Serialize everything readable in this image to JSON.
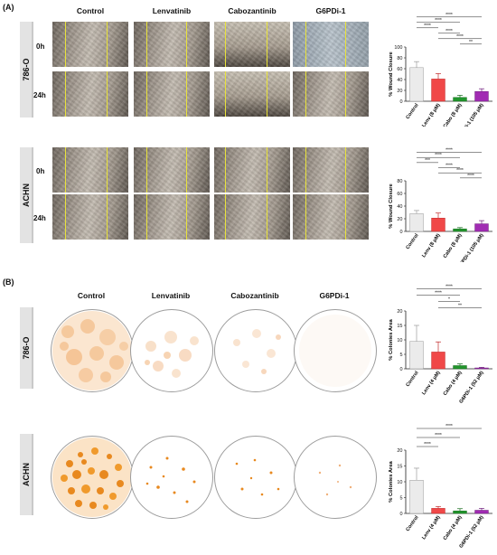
{
  "panel_a": {
    "letter": "(A)",
    "columns": [
      "Control",
      "Lenvatinib",
      "Cabozantinib",
      "G6PDi-1"
    ],
    "cell_lines": [
      "786-O",
      "ACHN"
    ],
    "timepoints": [
      "0h",
      "24h"
    ]
  },
  "panel_b": {
    "letter": "(B)",
    "columns": [
      "Control",
      "Lenvatinib",
      "Cabozantinib",
      "G6PDi-1"
    ],
    "cell_lines": [
      "786-O",
      "ACHN"
    ]
  },
  "colors": {
    "control": "#ebebeb",
    "lenv": "#f04848",
    "cabo": "#22962d",
    "g6pdi": "#a12cb3"
  },
  "chart_data": [
    {
      "type": "bar",
      "categories": [
        "Control",
        "Lenv (8 μM)",
        "Cabo (8 μM)",
        "G6PDi-1 (105 μM)"
      ],
      "values": [
        62,
        41,
        7,
        18
      ],
      "errors": [
        11,
        10,
        4,
        5
      ],
      "ylabel": "% Wound Closure",
      "ylim": [
        0,
        100
      ],
      "yticks": [
        0,
        20,
        40,
        60,
        80,
        100
      ],
      "significance": [
        {
          "from": 0,
          "to": 3,
          "label": "****"
        },
        {
          "from": 0,
          "to": 2,
          "label": "****"
        },
        {
          "from": 0,
          "to": 1,
          "label": "****"
        },
        {
          "from": 1,
          "to": 2,
          "label": "****"
        },
        {
          "from": 1,
          "to": 3,
          "label": "****"
        },
        {
          "from": 2,
          "to": 3,
          "label": "**"
        }
      ]
    },
    {
      "type": "bar",
      "categories": [
        "Control",
        "Lenv (8 μM)",
        "Cabo (8 μM)",
        "G6PDi-1 (105 μM)"
      ],
      "values": [
        28,
        21,
        4,
        12
      ],
      "errors": [
        5,
        8,
        2,
        5
      ],
      "ylabel": "% Wound Closure",
      "ylim": [
        0,
        80
      ],
      "yticks": [
        0,
        20,
        40,
        60,
        80
      ],
      "significance": [
        {
          "from": 0,
          "to": 3,
          "label": "****"
        },
        {
          "from": 0,
          "to": 2,
          "label": "****"
        },
        {
          "from": 0,
          "to": 1,
          "label": "***"
        },
        {
          "from": 1,
          "to": 2,
          "label": "****"
        },
        {
          "from": 1,
          "to": 3,
          "label": "****"
        },
        {
          "from": 2,
          "to": 3,
          "label": "****"
        }
      ]
    },
    {
      "type": "bar",
      "categories": [
        "Control",
        "Lenv (4 μM)",
        "Cabo (4 μM)",
        "G6PDi-1 (52 μM)"
      ],
      "values": [
        9.5,
        5.8,
        1.1,
        0.3
      ],
      "errors": [
        5.5,
        3.5,
        0.6,
        0.2
      ],
      "ylabel": "% Colonies Area",
      "ylim": [
        0,
        20
      ],
      "yticks": [
        0,
        5,
        10,
        15,
        20
      ],
      "significance": [
        {
          "from": 0,
          "to": 3,
          "label": "****"
        },
        {
          "from": 0,
          "to": 2,
          "label": "****"
        },
        {
          "from": 1,
          "to": 2,
          "label": "*"
        },
        {
          "from": 1,
          "to": 3,
          "label": "**"
        }
      ]
    },
    {
      "type": "bar",
      "categories": [
        "Control",
        "Lenv (4 μM)",
        "Cabo (4 μM)",
        "G6PDi-1 (52 μM)"
      ],
      "values": [
        10.5,
        1.6,
        0.8,
        1.0
      ],
      "errors": [
        3.8,
        0.6,
        0.7,
        0.6
      ],
      "ylabel": "% Colonies Area",
      "ylim": [
        0,
        20
      ],
      "yticks": [
        0,
        5,
        10,
        15,
        20
      ],
      "significance": [
        {
          "from": 0,
          "to": 3,
          "label": "****"
        },
        {
          "from": 0,
          "to": 2,
          "label": "****"
        },
        {
          "from": 0,
          "to": 1,
          "label": "****"
        }
      ]
    }
  ]
}
